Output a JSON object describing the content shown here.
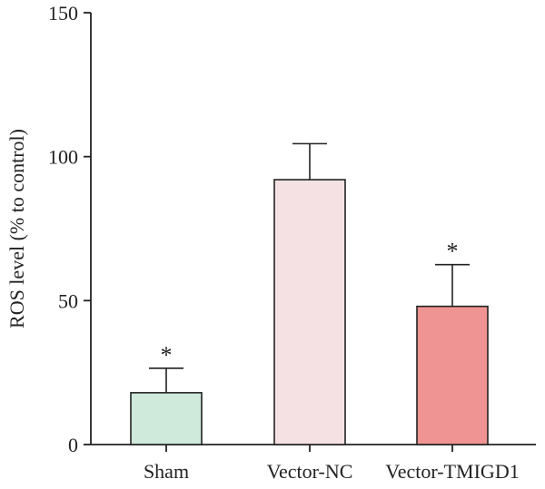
{
  "chart_data": {
    "type": "bar",
    "title": "",
    "xlabel": "",
    "ylabel": "ROS level (% to control)",
    "ylim": [
      0,
      150
    ],
    "yticks": [
      0,
      50,
      100,
      150
    ],
    "grid": false,
    "categories": [
      "Sham",
      "Vector-NC",
      "Vector-TMIGD1"
    ],
    "series": [
      {
        "values": [
          18,
          92,
          48
        ],
        "errors": [
          8.5,
          12.5,
          14.5
        ],
        "significance": [
          "*",
          "",
          "*"
        ],
        "colors": [
          "#cfe9da",
          "#f5e1e3",
          "#ef9492"
        ]
      }
    ]
  }
}
